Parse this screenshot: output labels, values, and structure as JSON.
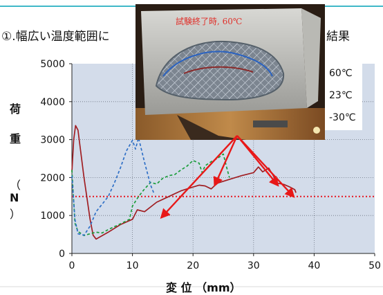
{
  "heading": {
    "left": "①.幅広い温度範囲に",
    "right": "結果"
  },
  "photo": {
    "caption": "試験終了時, 60℃"
  },
  "chart_data": {
    "type": "line",
    "xlabel": "変 位 （mm）",
    "ylabel_chars": [
      "荷",
      "重",
      "（",
      "N",
      "）"
    ],
    "xlim": [
      0,
      50
    ],
    "ylim": [
      0,
      5000
    ],
    "x_ticks": [
      "0",
      "10",
      "20",
      "30",
      "40",
      "50"
    ],
    "y_ticks": [
      "0",
      "1000",
      "2000",
      "3000",
      "4000",
      "5000"
    ],
    "grid": true,
    "legend_position": "top-right",
    "reference_line": {
      "y": 1500,
      "color": "#e8141e",
      "style": "dotted"
    },
    "series": [
      {
        "name": "60℃",
        "color": "#a01e22",
        "style": "solid",
        "points": [
          [
            0,
            2150
          ],
          [
            0.3,
            3000
          ],
          [
            0.6,
            3370
          ],
          [
            1.0,
            3250
          ],
          [
            2.0,
            2000
          ],
          [
            3.0,
            900
          ],
          [
            3.5,
            480
          ],
          [
            4.0,
            380
          ],
          [
            6.0,
            560
          ],
          [
            8.0,
            760
          ],
          [
            10.0,
            900
          ],
          [
            10.8,
            1150
          ],
          [
            12.0,
            1100
          ],
          [
            14.0,
            1350
          ],
          [
            16.0,
            1500
          ],
          [
            18.0,
            1650
          ],
          [
            20.0,
            1750
          ],
          [
            21.0,
            1800
          ],
          [
            22.0,
            1780
          ],
          [
            23.0,
            1700
          ],
          [
            24.0,
            1850
          ],
          [
            26.0,
            1950
          ],
          [
            28.0,
            2050
          ],
          [
            30.0,
            2130
          ],
          [
            30.8,
            2280
          ],
          [
            31.5,
            2150
          ],
          [
            32.5,
            2250
          ],
          [
            34.0,
            1850
          ],
          [
            35.0,
            1820
          ],
          [
            36.0,
            1750
          ],
          [
            36.8,
            1680
          ],
          [
            37.0,
            1600
          ]
        ]
      },
      {
        "name": "23℃",
        "color": "#1a9d3a",
        "style": "dashed",
        "points": [
          [
            0,
            2200
          ],
          [
            0.5,
            800
          ],
          [
            1.0,
            580
          ],
          [
            2.0,
            470
          ],
          [
            3.0,
            520
          ],
          [
            4.0,
            560
          ],
          [
            5.0,
            540
          ],
          [
            6.0,
            630
          ],
          [
            8.0,
            780
          ],
          [
            9.5,
            900
          ],
          [
            10.0,
            1250
          ],
          [
            11.0,
            1500
          ],
          [
            12.0,
            1700
          ],
          [
            13.0,
            1870
          ],
          [
            14.0,
            1830
          ],
          [
            15.0,
            1980
          ],
          [
            16.0,
            2050
          ],
          [
            17.0,
            2080
          ],
          [
            18.0,
            2200
          ],
          [
            19.0,
            2300
          ],
          [
            20.0,
            2450
          ],
          [
            21.0,
            2380
          ],
          [
            21.5,
            2130
          ],
          [
            22.0,
            2310
          ],
          [
            23.0,
            2420
          ],
          [
            24.0,
            2500
          ],
          [
            25.0,
            2620
          ],
          [
            25.5,
            2300
          ],
          [
            26.0,
            2000
          ]
        ]
      },
      {
        "name": "-30℃",
        "color": "#2e6fc6",
        "style": "dashed",
        "points": [
          [
            0,
            2050
          ],
          [
            0.5,
            900
          ],
          [
            1.0,
            520
          ],
          [
            2.0,
            480
          ],
          [
            3.0,
            720
          ],
          [
            4.0,
            1100
          ],
          [
            5.0,
            1300
          ],
          [
            6.0,
            1500
          ],
          [
            7.0,
            1850
          ],
          [
            8.0,
            2250
          ],
          [
            9.0,
            2700
          ],
          [
            10.0,
            2980
          ],
          [
            10.5,
            2750
          ],
          [
            11.0,
            3050
          ],
          [
            12.0,
            2400
          ],
          [
            13.0,
            1800
          ],
          [
            13.5,
            1600
          ]
        ]
      }
    ]
  }
}
